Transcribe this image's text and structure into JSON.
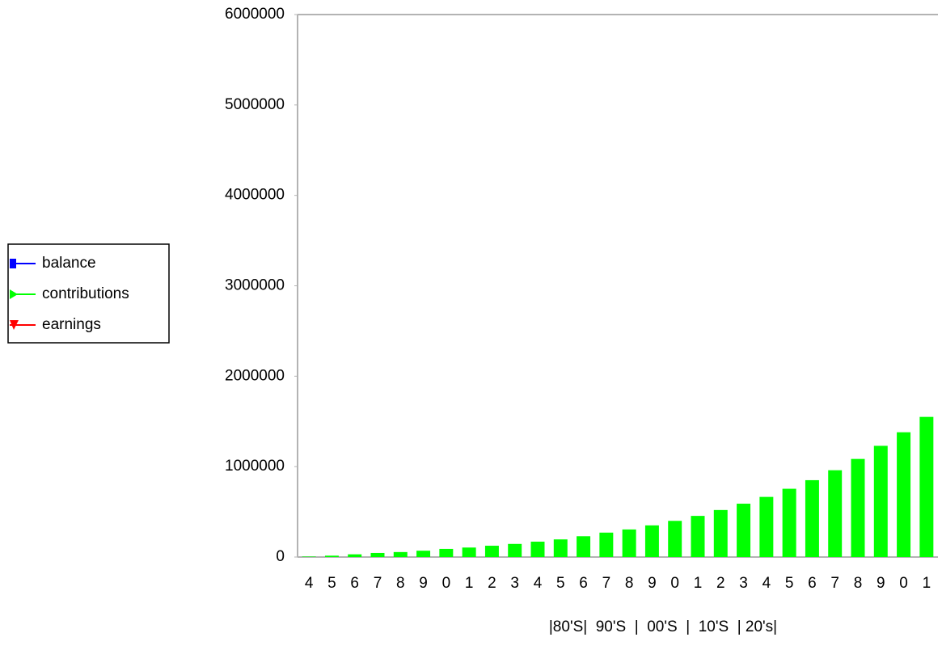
{
  "chart_data": {
    "type": "bar",
    "categories": [
      "4",
      "5",
      "6",
      "7",
      "8",
      "9",
      "0",
      "1",
      "2",
      "3",
      "4",
      "5",
      "6",
      "7",
      "8",
      "9",
      "0",
      "1",
      "2",
      "3",
      "4",
      "5",
      "6",
      "7",
      "8",
      "9",
      "0",
      "1"
    ],
    "series": [
      {
        "name": "balance",
        "color": "#0000ff",
        "marker": "square",
        "values": [
          null,
          null,
          null,
          null,
          null,
          null,
          null,
          null,
          null,
          null,
          null,
          null,
          null,
          null,
          null,
          null,
          null,
          null,
          null,
          null,
          null,
          null,
          null,
          null,
          null,
          null,
          null,
          null
        ]
      },
      {
        "name": "contributions",
        "color": "#00ff00",
        "marker": "triangle-right",
        "values": [
          5000,
          15000,
          30000,
          45000,
          55000,
          70000,
          90000,
          105000,
          125000,
          145000,
          170000,
          195000,
          230000,
          270000,
          305000,
          350000,
          400000,
          455000,
          520000,
          590000,
          665000,
          755000,
          850000,
          960000,
          1085000,
          1230000,
          1380000,
          1550000
        ]
      },
      {
        "name": "earnings",
        "color": "#ff0000",
        "marker": "triangle-down",
        "values": [
          null,
          null,
          null,
          null,
          null,
          null,
          null,
          null,
          null,
          null,
          null,
          null,
          null,
          null,
          null,
          null,
          null,
          null,
          null,
          null,
          null,
          null,
          null,
          null,
          null,
          null,
          null,
          null
        ]
      }
    ],
    "annotation": "|80'S|  90'S  |  00'S  |  10'S  | 20's|",
    "ylim": [
      0,
      6000000
    ],
    "yticks": [
      0,
      1000000,
      2000000,
      3000000,
      4000000,
      5000000,
      6000000
    ],
    "legend": "left"
  }
}
